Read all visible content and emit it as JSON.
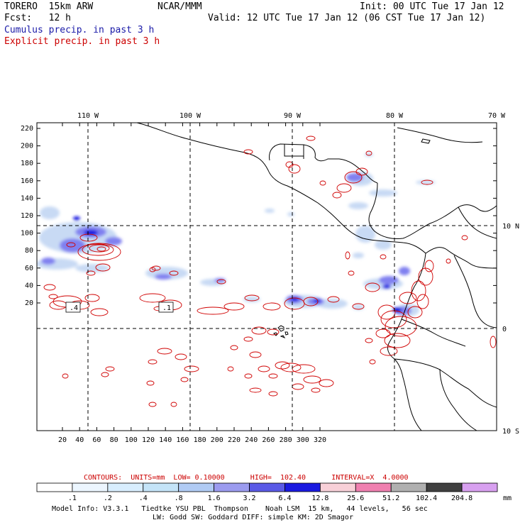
{
  "header": {
    "left_line1": "TORERO  15km ARW",
    "left_line2": "Fcst:   12 h",
    "center": "NCAR/MMM",
    "init": "Init: 00 UTC Tue 17 Jan 12",
    "valid": "Valid: 12 UTC Tue 17 Jan 12 (06 CST Tue 17 Jan 12)",
    "legend_cumulus": "Cumulus precip. in past 3 h",
    "legend_explicit": "Explicit precip. in past 3 h"
  },
  "map": {
    "top_lon_labels": [
      "110 W",
      "100 W",
      "90 W",
      "80 W",
      "70 W"
    ],
    "right_lat_labels": [
      "10 N",
      "0",
      "10 S"
    ],
    "y_ticks": [
      "220",
      "200",
      "180",
      "160",
      "140",
      "120",
      "100",
      "80",
      "60",
      "40",
      "20"
    ],
    "x_ticks": [
      "20",
      "40",
      "60",
      "80",
      "100",
      "120",
      "140",
      "160",
      "180",
      "200",
      "220",
      "240",
      "260",
      "280",
      "300",
      "320"
    ],
    "contour_labels": [
      ".4",
      ".1"
    ],
    "colors": {
      "coast": "#000000",
      "grid": "#000000",
      "explicit": "#d00000",
      "cumulus_light": "#c6d8f4",
      "cumulus_mid": "#8080f0",
      "cumulus_dark": "#1010e0"
    }
  },
  "contours_line": {
    "prefix": "CONTOURS:  UNITS=mm  LOW= 0.10000      HIGH=  102.40      INTERVAL=X  4.0000"
  },
  "colorbar": {
    "labels": [
      ".1",
      ".2",
      ".4",
      ".8",
      "1.6",
      "3.2",
      "6.4",
      "12.8",
      "25.6",
      "51.2",
      "102.4",
      "204.8"
    ],
    "unit": "mm",
    "colors": [
      "#ffffff",
      "#ecf6ff",
      "#d8eefe",
      "#c4e4f8",
      "#b0cbf4",
      "#9b9bef",
      "#5a5ae6",
      "#1a1ae0",
      "#f8d0d8",
      "#f080b0",
      "#b0b0b0",
      "#404040",
      "#d8a0f0"
    ]
  },
  "footer": {
    "line1": "Model Info: V3.3.1   Tiedtke YSU PBL  Thompson    Noah LSM  15 km,   44 levels,   56 sec",
    "line2": "LW: Godd SW: Goddard DIFF: simple KM: 2D Smagor"
  }
}
